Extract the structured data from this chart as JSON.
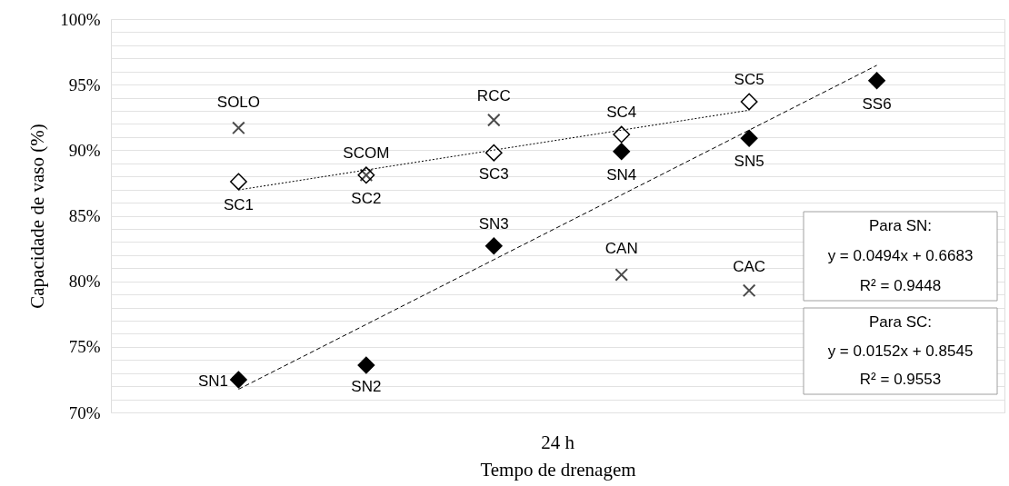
{
  "chart_data": {
    "type": "scatter",
    "xlabel": "Tempo de drenagem",
    "ylabel": "Capacidade de vaso  (%)",
    "categories": [
      null,
      null,
      null,
      null,
      null,
      null
    ],
    "ylim": [
      70,
      100
    ],
    "yticks": [
      {
        "value": 70,
        "label": "70%"
      },
      {
        "value": 71,
        "label": null
      },
      {
        "value": 72,
        "label": null
      },
      {
        "value": 73,
        "label": null
      },
      {
        "value": 74,
        "label": null
      },
      {
        "value": 75,
        "label": "75%"
      },
      {
        "value": 76,
        "label": null
      },
      {
        "value": 77,
        "label": null
      },
      {
        "value": 78,
        "label": null
      },
      {
        "value": 79,
        "label": null
      },
      {
        "value": 80,
        "label": "80%"
      },
      {
        "value": 81,
        "label": null
      },
      {
        "value": 82,
        "label": null
      },
      {
        "value": 83,
        "label": null
      },
      {
        "value": 84,
        "label": null
      },
      {
        "value": 85,
        "label": "85%"
      },
      {
        "value": 86,
        "label": null
      },
      {
        "value": 87,
        "label": null
      },
      {
        "value": 88,
        "label": null
      },
      {
        "value": 89,
        "label": null
      },
      {
        "value": 90,
        "label": "90%"
      },
      {
        "value": 91,
        "label": null
      },
      {
        "value": 92,
        "label": null
      },
      {
        "value": 93,
        "label": null
      },
      {
        "value": 94,
        "label": null
      },
      {
        "value": 95,
        "label": "95%"
      },
      {
        "value": 96,
        "label": null
      },
      {
        "value": 97,
        "label": null
      },
      {
        "value": 98,
        "label": null
      },
      {
        "value": 99,
        "label": null
      },
      {
        "value": 100,
        "label": "100%"
      }
    ],
    "tick_labels": "y",
    "grid": "y",
    "series": [
      {
        "type": "scatter",
        "marker": "diamond",
        "color": "#000000",
        "values": [
          72.5,
          73.6,
          82.7,
          89.9,
          90.9,
          95.3
        ],
        "value_labels": [
          "SN1",
          "SN2",
          "SN3",
          "SN4",
          "SN5",
          "SS6"
        ]
      },
      {
        "type": "scatter",
        "marker": "diamond",
        "color": "#ffffff",
        "values": [
          87.6,
          88.1,
          89.8,
          91.2,
          93.7,
          null
        ],
        "value_labels": [
          "SC1",
          "SC2",
          "SC3",
          "SC4",
          "SC5",
          null
        ]
      },
      {
        "type": "scatter",
        "marker": "cross",
        "color": "#000000",
        "values": [
          91.7,
          88.1,
          92.3,
          80.5,
          79.3,
          null
        ],
        "value_labels": [
          "SOLO",
          "SCOM",
          "RCC",
          "CAN",
          "CAC",
          null
        ]
      },
      {
        "type": "line",
        "line_style": "dashed",
        "color": "#000000",
        "values": [
          71.77,
          76.71,
          81.65,
          86.59,
          91.53,
          96.47
        ]
      },
      {
        "type": "line",
        "line_style": "dotted",
        "color": "#000000",
        "values": [
          86.97,
          88.49,
          90.01,
          91.53,
          93.05,
          null
        ]
      }
    ],
    "annotations": [
      "24 h",
      "Para SN:\ny = 0.0494x + 0.6683\nR² = 0.9448",
      "Para SC:\ny = 0.0152x + 0.8545\nR² = 0.9553"
    ]
  }
}
